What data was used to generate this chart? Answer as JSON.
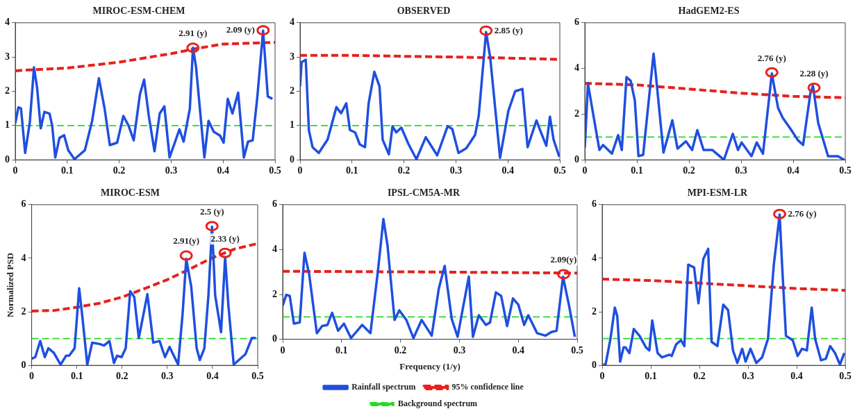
{
  "chart_data": [
    {
      "type": "line",
      "title": "MIROC-ESM-CHEM",
      "xlim": [
        0,
        0.5
      ],
      "xticks": [
        0,
        0.1,
        0.2,
        0.3,
        0.4,
        0.5
      ],
      "ylim": [
        0,
        4
      ],
      "yticks": [
        0,
        1,
        2,
        3,
        4
      ],
      "grid": false,
      "series": [
        {
          "color": "#1f4fe0",
          "line_style": "solid",
          "x": [
            0,
            0.006,
            0.011,
            0.019,
            0.028,
            0.036,
            0.042,
            0.049,
            0.056,
            0.066,
            0.071,
            0.077,
            0.085,
            0.094,
            0.102,
            0.114,
            0.134,
            0.148,
            0.161,
            0.172,
            0.182,
            0.196,
            0.208,
            0.218,
            0.228,
            0.24,
            0.248,
            0.257,
            0.268,
            0.278,
            0.287,
            0.297,
            0.307,
            0.316,
            0.324,
            0.336,
            0.342,
            0.348,
            0.364,
            0.372,
            0.382,
            0.394,
            0.401,
            0.409,
            0.418,
            0.429,
            0.44,
            0.448,
            0.457,
            0.466,
            0.477,
            0.486,
            0.495
          ],
          "values": [
            1.07,
            1.53,
            1.5,
            0.2,
            1.1,
            2.7,
            2.1,
            0.92,
            1.4,
            1.35,
            1.0,
            0.07,
            0.64,
            0.72,
            0.28,
            0.02,
            0.28,
            1.14,
            2.38,
            1.49,
            0.43,
            0.5,
            1.28,
            1.0,
            0.57,
            1.92,
            2.34,
            1.28,
            0.25,
            1.35,
            1.56,
            0.07,
            0.5,
            0.89,
            0.53,
            1.49,
            3.27,
            2.7,
            0.07,
            1.14,
            0.82,
            0.71,
            0.5,
            1.78,
            1.35,
            1.96,
            0.07,
            0.53,
            0.57,
            1.85,
            3.77,
            1.85,
            1.78
          ]
        },
        {
          "color": "#e8201c",
          "line_style": "dashed",
          "x": [
            0,
            0.1,
            0.2,
            0.3,
            0.35,
            0.4,
            0.5
          ],
          "values": [
            2.6,
            2.68,
            2.85,
            3.1,
            3.25,
            3.38,
            3.43
          ]
        },
        {
          "color": "#22dd22",
          "line_style": "dashed",
          "x": [
            0,
            0.5
          ],
          "values": [
            1,
            1
          ]
        }
      ],
      "annotations": [
        {
          "text": "2.91 (y)",
          "x": 0.342,
          "y": 3.27
        },
        {
          "text": "2.09 (y)",
          "x": 0.477,
          "y": 3.78
        }
      ]
    },
    {
      "type": "line",
      "title": "OBSERVED",
      "xlim": [
        0,
        0.5
      ],
      "xticks": [
        0,
        0.1,
        0.2,
        0.3,
        0.4,
        0.5
      ],
      "ylim": [
        0,
        4
      ],
      "yticks": [
        0,
        1,
        2,
        3,
        4
      ],
      "grid": false,
      "series": [
        {
          "color": "#1f4fe0",
          "line_style": "solid",
          "x": [
            0,
            0.003,
            0.011,
            0.017,
            0.024,
            0.036,
            0.053,
            0.07,
            0.079,
            0.089,
            0.096,
            0.106,
            0.115,
            0.125,
            0.132,
            0.143,
            0.153,
            0.159,
            0.171,
            0.178,
            0.185,
            0.195,
            0.209,
            0.224,
            0.242,
            0.264,
            0.284,
            0.293,
            0.305,
            0.32,
            0.337,
            0.344,
            0.358,
            0.366,
            0.385,
            0.401,
            0.414,
            0.428,
            0.438,
            0.455,
            0.462,
            0.474,
            0.481,
            0.488,
            0.499
          ],
          "values": [
            2.14,
            2.85,
            2.92,
            0.87,
            0.37,
            0.2,
            0.59,
            1.54,
            1.36,
            1.65,
            0.87,
            0.8,
            0.45,
            0.37,
            1.65,
            2.57,
            2.14,
            0.59,
            0.16,
            0.98,
            0.8,
            0.94,
            0.45,
            0.02,
            0.66,
            0.13,
            0.98,
            0.9,
            0.2,
            0.34,
            0.73,
            1.29,
            3.73,
            2.99,
            0.06,
            1.43,
            2.0,
            2.07,
            0.37,
            1.15,
            0.87,
            0.41,
            1.26,
            0.59,
            0.09
          ]
        },
        {
          "color": "#e8201c",
          "line_style": "dashed",
          "x": [
            0,
            0.1,
            0.2,
            0.3,
            0.4,
            0.5
          ],
          "values": [
            3.05,
            3.05,
            3.02,
            3.0,
            2.97,
            2.93
          ]
        },
        {
          "color": "#22dd22",
          "line_style": "dashed",
          "x": [
            0,
            0.5
          ],
          "values": [
            1,
            1
          ]
        }
      ],
      "annotations": [
        {
          "text": "2.85 (y)",
          "x": 0.358,
          "y": 3.77
        }
      ]
    },
    {
      "type": "line",
      "title": "HadGEM2-ES",
      "xlim": [
        0,
        0.5
      ],
      "xticks": [
        0,
        0.1,
        0.2,
        0.3,
        0.4,
        0.5
      ],
      "ylim": [
        0,
        6
      ],
      "yticks": [
        0,
        2,
        4,
        6
      ],
      "grid": false,
      "series": [
        {
          "color": "#1f4fe0",
          "line_style": "solid",
          "x": [
            0,
            0.006,
            0.014,
            0.028,
            0.035,
            0.052,
            0.064,
            0.071,
            0.08,
            0.088,
            0.096,
            0.103,
            0.112,
            0.132,
            0.137,
            0.151,
            0.168,
            0.178,
            0.194,
            0.206,
            0.216,
            0.228,
            0.245,
            0.267,
            0.284,
            0.294,
            0.301,
            0.32,
            0.33,
            0.342,
            0.359,
            0.371,
            0.38,
            0.395,
            0.409,
            0.419,
            0.433,
            0.438,
            0.448,
            0.467,
            0.486,
            0.498
          ],
          "values": [
            0.54,
            3.35,
            2.27,
            0.43,
            0.65,
            0.27,
            1.08,
            0.43,
            3.62,
            3.46,
            2.6,
            0.16,
            0.22,
            4.65,
            3.57,
            0.32,
            1.73,
            0.49,
            0.81,
            0.43,
            1.3,
            0.43,
            0.43,
            0.0,
            1.14,
            0.43,
            0.76,
            0.16,
            0.76,
            0.27,
            3.78,
            2.27,
            1.84,
            1.35,
            0.86,
            0.65,
            2.92,
            3.24,
            1.62,
            0.16,
            0.16,
            0.0
          ]
        },
        {
          "color": "#e8201c",
          "line_style": "dashed",
          "x": [
            0,
            0.1,
            0.2,
            0.3,
            0.4,
            0.5
          ],
          "values": [
            3.35,
            3.28,
            3.1,
            2.92,
            2.78,
            2.72
          ]
        },
        {
          "color": "#22dd22",
          "line_style": "dashed",
          "x": [
            0,
            0.5
          ],
          "values": [
            1,
            1
          ]
        }
      ],
      "annotations": [
        {
          "text": "2.76 (y)",
          "x": 0.359,
          "y": 3.83
        },
        {
          "text": "2.28 (y)",
          "x": 0.44,
          "y": 3.15
        }
      ]
    },
    {
      "type": "line",
      "title": "MIROC-ESM",
      "ylabel": "Normalized PSD",
      "xlim": [
        0,
        0.5
      ],
      "xticks": [
        0,
        0.1,
        0.2,
        0.3,
        0.4,
        0.5
      ],
      "ylim": [
        0,
        6
      ],
      "yticks": [
        0,
        2,
        4,
        6
      ],
      "grid": false,
      "series": [
        {
          "color": "#1f4fe0",
          "line_style": "solid",
          "x": [
            0,
            0.008,
            0.019,
            0.029,
            0.037,
            0.049,
            0.064,
            0.076,
            0.083,
            0.095,
            0.105,
            0.112,
            0.123,
            0.134,
            0.15,
            0.16,
            0.172,
            0.182,
            0.189,
            0.199,
            0.208,
            0.218,
            0.227,
            0.237,
            0.256,
            0.269,
            0.283,
            0.295,
            0.305,
            0.324,
            0.334,
            0.342,
            0.353,
            0.365,
            0.372,
            0.382,
            0.391,
            0.399,
            0.406,
            0.419,
            0.428,
            0.435,
            0.447,
            0.473,
            0.487,
            0.496
          ],
          "values": [
            0.25,
            0.31,
            0.91,
            0.31,
            0.64,
            0.47,
            0.03,
            0.36,
            0.36,
            0.64,
            2.88,
            1.84,
            0.03,
            0.85,
            0.8,
            0.74,
            0.91,
            0.09,
            0.36,
            0.31,
            0.64,
            2.77,
            2.55,
            1.02,
            2.66,
            0.85,
            0.91,
            0.31,
            0.69,
            0.03,
            1.95,
            3.98,
            2.94,
            0.64,
            0.2,
            0.64,
            2.61,
            5.18,
            2.61,
            1.24,
            4.04,
            2.28,
            0.03,
            0.42,
            1.02,
            1.02
          ]
        },
        {
          "color": "#e8201c",
          "line_style": "dashed",
          "x": [
            0,
            0.05,
            0.1,
            0.15,
            0.2,
            0.25,
            0.3,
            0.35,
            0.4,
            0.45,
            0.5
          ],
          "values": [
            2.03,
            2.05,
            2.17,
            2.32,
            2.55,
            2.87,
            3.2,
            3.6,
            4.02,
            4.35,
            4.55
          ]
        },
        {
          "color": "#22dd22",
          "line_style": "dashed",
          "x": [
            0,
            0.5
          ],
          "values": [
            1,
            1
          ]
        }
      ],
      "annotations": [
        {
          "text": "2.91(y)",
          "x": 0.342,
          "y": 4.1
        },
        {
          "text": "2.5 (y)",
          "x": 0.399,
          "y": 5.2
        },
        {
          "text": "2.33 (y)",
          "x": 0.428,
          "y": 4.2
        }
      ]
    },
    {
      "type": "line",
      "title": "IPSL-CM5A-MR",
      "xlabel": "Frequency (1/y)",
      "legend": "bottom",
      "xlim": [
        0,
        0.5
      ],
      "xticks": [
        0,
        0.1,
        0.2,
        0.3,
        0.4,
        0.5
      ],
      "ylim": [
        0,
        6
      ],
      "yticks": [
        0,
        2,
        4,
        6
      ],
      "grid": false,
      "series": [
        {
          "name": "Rainfall spectrum",
          "color": "#1f4fe0",
          "line_style": "solid",
          "x": [
            0,
            0.006,
            0.012,
            0.019,
            0.029,
            0.037,
            0.045,
            0.058,
            0.067,
            0.076,
            0.084,
            0.094,
            0.104,
            0.116,
            0.135,
            0.149,
            0.162,
            0.171,
            0.178,
            0.19,
            0.198,
            0.21,
            0.222,
            0.236,
            0.253,
            0.265,
            0.275,
            0.287,
            0.297,
            0.306,
            0.316,
            0.323,
            0.333,
            0.345,
            0.352,
            0.362,
            0.371,
            0.381,
            0.391,
            0.4,
            0.41,
            0.417,
            0.432,
            0.446,
            0.456,
            0.465,
            0.476,
            0.487,
            0.496
          ],
          "values": [
            1.5,
            1.98,
            1.93,
            0.7,
            0.75,
            3.86,
            2.89,
            0.27,
            0.59,
            0.64,
            1.18,
            0.38,
            0.7,
            0.05,
            0.64,
            0.27,
            3.11,
            5.36,
            4.18,
            0.86,
            1.29,
            0.86,
            0.05,
            0.86,
            0.16,
            2.25,
            3.27,
            0.91,
            0.11,
            1.39,
            2.79,
            0.11,
            1.07,
            0.64,
            0.75,
            2.09,
            1.93,
            0.59,
            1.82,
            1.55,
            0.64,
            1.07,
            0.27,
            0.16,
            0.32,
            0.38,
            2.79,
            1.39,
            0.11
          ]
        },
        {
          "name": "95% confidence line",
          "color": "#e8201c",
          "line_style": "dashed",
          "x": [
            0,
            0.25,
            0.5
          ],
          "values": [
            3.03,
            3.0,
            2.95
          ]
        },
        {
          "name": "Background spectrum",
          "color": "#22dd22",
          "line_style": "dashed",
          "x": [
            0,
            0.5
          ],
          "values": [
            1,
            1
          ]
        }
      ],
      "annotations": [
        {
          "text": "2.09(y)",
          "x": 0.477,
          "y": 2.9
        }
      ]
    },
    {
      "type": "line",
      "title": "MPI-ESM-LR",
      "xlim": [
        0,
        0.5
      ],
      "xticks": [
        0,
        0.1,
        0.2,
        0.3,
        0.4,
        0.5
      ],
      "ylim": [
        0,
        6
      ],
      "yticks": [
        0,
        2,
        4,
        6
      ],
      "grid": false,
      "series": [
        {
          "color": "#1f4fe0",
          "line_style": "solid",
          "x": [
            0.002,
            0.007,
            0.017,
            0.026,
            0.031,
            0.037,
            0.044,
            0.048,
            0.056,
            0.065,
            0.077,
            0.09,
            0.097,
            0.103,
            0.114,
            0.123,
            0.138,
            0.143,
            0.152,
            0.162,
            0.169,
            0.177,
            0.189,
            0.198,
            0.208,
            0.218,
            0.225,
            0.237,
            0.249,
            0.259,
            0.269,
            0.278,
            0.288,
            0.295,
            0.305,
            0.317,
            0.329,
            0.341,
            0.353,
            0.365,
            0.37,
            0.378,
            0.392,
            0.402,
            0.411,
            0.421,
            0.431,
            0.438,
            0.45,
            0.46,
            0.469,
            0.479,
            0.489,
            0.498
          ],
          "values": [
            0.03,
            0.03,
            0.99,
            2.16,
            1.84,
            0.14,
            0.67,
            0.67,
            0.46,
            1.36,
            1.1,
            0.67,
            0.56,
            1.68,
            0.46,
            0.3,
            0.4,
            0.35,
            0.78,
            0.94,
            0.72,
            3.76,
            3.66,
            2.32,
            3.97,
            4.35,
            0.88,
            0.72,
            2.27,
            2.06,
            0.56,
            0.09,
            0.62,
            0.14,
            0.62,
            0.09,
            0.3,
            0.99,
            3.76,
            5.63,
            3.76,
            1.1,
            0.94,
            0.35,
            0.62,
            0.56,
            2.16,
            0.99,
            0.19,
            0.25,
            0.72,
            0.46,
            0.03,
            0.46
          ]
        },
        {
          "color": "#e8201c",
          "line_style": "dashed",
          "x": [
            0,
            0.1,
            0.2,
            0.3,
            0.4,
            0.5
          ],
          "values": [
            3.22,
            3.17,
            3.07,
            2.97,
            2.87,
            2.8
          ]
        },
        {
          "color": "#22dd22",
          "line_style": "dashed",
          "x": [
            0,
            0.5
          ],
          "values": [
            1,
            1
          ]
        }
      ],
      "annotations": [
        {
          "text": "2.76 (y)",
          "x": 0.365,
          "y": 5.65
        }
      ]
    }
  ]
}
